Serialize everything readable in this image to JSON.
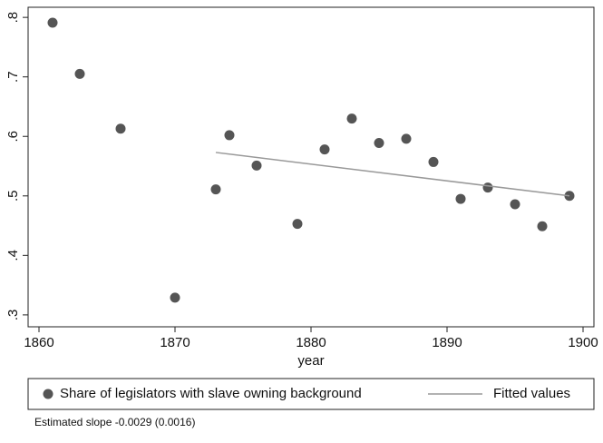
{
  "chart_data": {
    "type": "scatter",
    "xlabel": "year",
    "note": "Estimated slope -0.0029 (0.0016)",
    "xlim": [
      1859.2,
      1900.8
    ],
    "xticks": [
      1860,
      1870,
      1880,
      1890,
      1900
    ],
    "ylim": [
      0.28,
      0.817
    ],
    "yticks": [
      {
        "value": 0.3,
        "label": ".3"
      },
      {
        "value": 0.4,
        "label": ".4"
      },
      {
        "value": 0.5,
        "label": ".5"
      },
      {
        "value": 0.6,
        "label": ".6"
      },
      {
        "value": 0.7,
        "label": ".7"
      },
      {
        "value": 0.8,
        "label": ".8"
      }
    ],
    "series": [
      {
        "name": "Share of legislators with slave owning background",
        "type": "scatter",
        "color": "#555555",
        "x": [
          1861,
          1863,
          1866,
          1870,
          1873,
          1874,
          1876,
          1879,
          1881,
          1883,
          1885,
          1887,
          1889,
          1891,
          1893,
          1895,
          1897,
          1899
        ],
        "values": [
          0.791,
          0.705,
          0.613,
          0.329,
          0.511,
          0.602,
          0.551,
          0.453,
          0.578,
          0.63,
          0.589,
          0.596,
          0.557,
          0.495,
          0.514,
          0.486,
          0.449,
          0.5
        ]
      },
      {
        "name": "Fitted values",
        "type": "line",
        "color": "#999999",
        "x": [
          1873,
          1899
        ],
        "values": [
          0.573,
          0.5
        ]
      }
    ]
  }
}
